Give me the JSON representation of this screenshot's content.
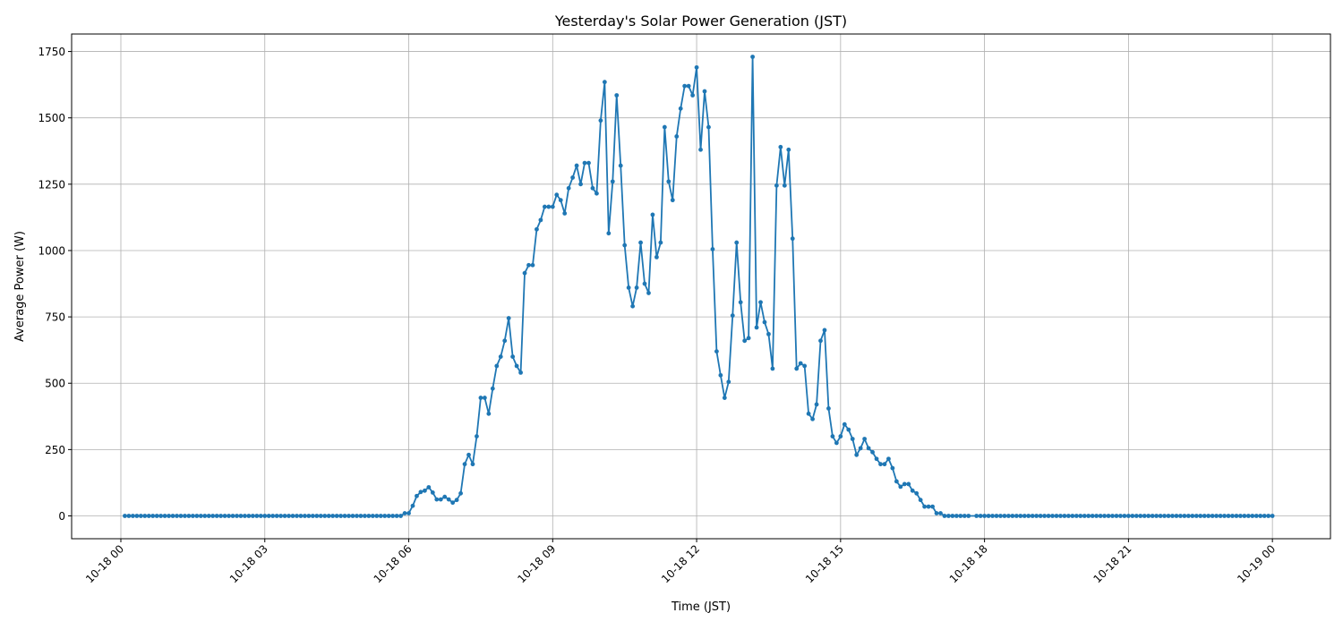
{
  "chart_data": {
    "type": "line",
    "title": "Yesterday's Solar Power Generation (JST)",
    "xlabel": "Time (JST)",
    "ylabel": "Average Power (W)",
    "ylim": [
      -86,
      1816
    ],
    "yticks": [
      0,
      250,
      500,
      750,
      1000,
      1250,
      1500,
      1750
    ],
    "xticks": [
      "10-18 00",
      "10-18 03",
      "10-18 06",
      "10-18 09",
      "10-18 12",
      "10-18 15",
      "10-18 18",
      "10-18 21",
      "10-19 00"
    ],
    "grid": true,
    "marker": "circle",
    "color": "#1f77b4",
    "series": [
      {
        "x": [
          "10-18 00:05",
          "10-18 00:10",
          "10-18 00:15",
          "10-18 00:20",
          "10-18 00:25",
          "10-18 00:30",
          "10-18 00:35",
          "10-18 00:40",
          "10-18 00:45",
          "10-18 00:50",
          "10-18 00:55",
          "10-18 01:00",
          "10-18 01:05",
          "10-18 01:10",
          "10-18 01:15",
          "10-18 01:20",
          "10-18 01:25",
          "10-18 01:30",
          "10-18 01:35",
          "10-18 01:40",
          "10-18 01:45",
          "10-18 01:50",
          "10-18 01:55",
          "10-18 02:00",
          "10-18 02:05",
          "10-18 02:10",
          "10-18 02:15",
          "10-18 02:20",
          "10-18 02:25",
          "10-18 02:30",
          "10-18 02:35",
          "10-18 02:40",
          "10-18 02:45",
          "10-18 02:50",
          "10-18 02:55",
          "10-18 03:00",
          "10-18 03:05",
          "10-18 03:10",
          "10-18 03:15",
          "10-18 03:20",
          "10-18 03:25",
          "10-18 03:30",
          "10-18 03:35",
          "10-18 03:40",
          "10-18 03:45",
          "10-18 03:50",
          "10-18 03:55",
          "10-18 04:00",
          "10-18 04:05",
          "10-18 04:10",
          "10-18 04:15",
          "10-18 04:20",
          "10-18 04:25",
          "10-18 04:30",
          "10-18 04:35",
          "10-18 04:40",
          "10-18 04:45",
          "10-18 04:50",
          "10-18 04:55",
          "10-18 05:00",
          "10-18 05:05",
          "10-18 05:10",
          "10-18 05:15",
          "10-18 05:20",
          "10-18 05:25",
          "10-18 05:30",
          "10-18 05:35",
          "10-18 05:40",
          "10-18 05:45",
          "10-18 05:50",
          "10-18 05:55",
          "10-18 06:00",
          "10-18 06:05",
          "10-18 06:10",
          "10-18 06:15",
          "10-18 06:20",
          "10-18 06:25",
          "10-18 06:30",
          "10-18 06:35",
          "10-18 06:40",
          "10-18 06:45",
          "10-18 06:50",
          "10-18 06:55",
          "10-18 07:00",
          "10-18 07:05",
          "10-18 07:10",
          "10-18 07:15",
          "10-18 07:20",
          "10-18 07:25",
          "10-18 07:30",
          "10-18 07:35",
          "10-18 07:40",
          "10-18 07:45",
          "10-18 07:50",
          "10-18 07:55",
          "10-18 08:00",
          "10-18 08:05",
          "10-18 08:10",
          "10-18 08:15",
          "10-18 08:20",
          "10-18 08:25",
          "10-18 08:30",
          "10-18 08:35",
          "10-18 08:40",
          "10-18 08:45",
          "10-18 08:50",
          "10-18 08:55",
          "10-18 09:00",
          "10-18 09:05",
          "10-18 09:10",
          "10-18 09:15",
          "10-18 09:20",
          "10-18 09:25",
          "10-18 09:30",
          "10-18 09:35",
          "10-18 09:40",
          "10-18 09:45",
          "10-18 09:50",
          "10-18 09:55",
          "10-18 10:00",
          "10-18 10:05",
          "10-18 10:10",
          "10-18 10:15",
          "10-18 10:20",
          "10-18 10:25",
          "10-18 10:30",
          "10-18 10:35",
          "10-18 10:40",
          "10-18 10:45",
          "10-18 10:50",
          "10-18 10:55",
          "10-18 11:00",
          "10-18 11:05",
          "10-18 11:10",
          "10-18 11:15",
          "10-18 11:20",
          "10-18 11:25",
          "10-18 11:30",
          "10-18 11:35",
          "10-18 11:40",
          "10-18 11:45",
          "10-18 11:50",
          "10-18 11:55",
          "10-18 12:00",
          "10-18 12:05",
          "10-18 12:10",
          "10-18 12:15",
          "10-18 12:20",
          "10-18 12:25",
          "10-18 12:30",
          "10-18 12:35",
          "10-18 12:40",
          "10-18 12:45",
          "10-18 12:50",
          "10-18 12:55",
          "10-18 13:00",
          "10-18 13:05",
          "10-18 13:10",
          "10-18 13:15",
          "10-18 13:20",
          "10-18 13:25",
          "10-18 13:30",
          "10-18 13:35",
          "10-18 13:40",
          "10-18 13:45",
          "10-18 13:50",
          "10-18 13:55",
          "10-18 14:00",
          "10-18 14:05",
          "10-18 14:10",
          "10-18 14:15",
          "10-18 14:20",
          "10-18 14:25",
          "10-18 14:30",
          "10-18 14:35",
          "10-18 14:40",
          "10-18 14:45",
          "10-18 14:50",
          "10-18 14:55",
          "10-18 15:00",
          "10-18 15:05",
          "10-18 15:10",
          "10-18 15:15",
          "10-18 15:20",
          "10-18 15:25",
          "10-18 15:30",
          "10-18 15:35",
          "10-18 15:40",
          "10-18 15:45",
          "10-18 15:50",
          "10-18 15:55",
          "10-18 16:00",
          "10-18 16:05",
          "10-18 16:10",
          "10-18 16:15",
          "10-18 16:20",
          "10-18 16:25",
          "10-18 16:30",
          "10-18 16:35",
          "10-18 16:40",
          "10-18 16:45",
          "10-18 16:50",
          "10-18 16:55",
          "10-18 17:00",
          "10-18 17:05",
          "10-18 17:10",
          "10-18 17:15",
          "10-18 17:20",
          "10-18 17:25",
          "10-18 17:30",
          "10-18 17:35",
          "10-18 17:40",
          "10-18 17:50",
          "10-18 17:55",
          "10-18 18:00",
          "10-18 18:05",
          "10-18 18:10",
          "10-18 18:15",
          "10-18 18:20",
          "10-18 18:25",
          "10-18 18:30",
          "10-18 18:35",
          "10-18 18:40",
          "10-18 18:45",
          "10-18 18:50",
          "10-18 18:55",
          "10-18 19:00",
          "10-18 19:05",
          "10-18 19:10",
          "10-18 19:15",
          "10-18 19:20",
          "10-18 19:25",
          "10-18 19:30",
          "10-18 19:35",
          "10-18 19:40",
          "10-18 19:45",
          "10-18 19:50",
          "10-18 19:55",
          "10-18 20:00",
          "10-18 20:05",
          "10-18 20:10",
          "10-18 20:15",
          "10-18 20:20",
          "10-18 20:25",
          "10-18 20:30",
          "10-18 20:35",
          "10-18 20:40",
          "10-18 20:45",
          "10-18 20:50",
          "10-18 20:55",
          "10-18 21:00",
          "10-18 21:05",
          "10-18 21:10",
          "10-18 21:15",
          "10-18 21:20",
          "10-18 21:25",
          "10-18 21:30",
          "10-18 21:35",
          "10-18 21:40",
          "10-18 21:45",
          "10-18 21:50",
          "10-18 21:55",
          "10-18 22:00",
          "10-18 22:05",
          "10-18 22:10",
          "10-18 22:15",
          "10-18 22:20",
          "10-18 22:25",
          "10-18 22:30",
          "10-18 22:35",
          "10-18 22:40",
          "10-18 22:45",
          "10-18 22:50",
          "10-18 22:55",
          "10-18 23:00",
          "10-18 23:05",
          "10-18 23:10",
          "10-18 23:15",
          "10-18 23:20",
          "10-18 23:25",
          "10-18 23:30",
          "10-18 23:35",
          "10-18 23:40",
          "10-18 23:45",
          "10-18 23:50",
          "10-18 23:55",
          "10-19 00:00"
        ],
        "y": [
          0,
          0,
          0,
          0,
          0,
          0,
          0,
          0,
          0,
          0,
          0,
          0,
          0,
          0,
          0,
          0,
          0,
          0,
          0,
          0,
          0,
          0,
          0,
          0,
          0,
          0,
          0,
          0,
          0,
          0,
          0,
          0,
          0,
          0,
          0,
          0,
          0,
          0,
          0,
          0,
          0,
          0,
          0,
          0,
          0,
          0,
          0,
          0,
          0,
          0,
          0,
          0,
          0,
          0,
          0,
          0,
          0,
          0,
          0,
          0,
          0,
          0,
          0,
          0,
          0,
          0,
          0,
          0,
          0,
          0,
          10,
          10,
          38,
          75,
          90,
          95,
          108,
          88,
          62,
          62,
          72,
          62,
          50,
          60,
          85,
          195,
          230,
          195,
          300,
          445,
          445,
          385,
          480,
          565,
          600,
          660,
          745,
          600,
          565,
          540,
          915,
          945,
          945,
          1080,
          1115,
          1165,
          1165,
          1165,
          1210,
          1190,
          1140,
          1235,
          1275,
          1320,
          1250,
          1330,
          1330,
          1235,
          1215,
          1490,
          1635,
          1065,
          1260,
          1585,
          1320,
          1020,
          860,
          790,
          860,
          1030,
          875,
          840,
          1135,
          975,
          1030,
          1465,
          1260,
          1190,
          1430,
          1535,
          1620,
          1620,
          1585,
          1690,
          1380,
          1600,
          1465,
          1005,
          620,
          530,
          445,
          505,
          755,
          1030,
          805,
          660,
          670,
          1730,
          710,
          805,
          730,
          685,
          555,
          1245,
          1390,
          1245,
          1380,
          1045,
          555,
          575,
          565,
          385,
          365,
          420,
          660,
          700,
          405,
          300,
          275,
          300,
          345,
          325,
          290,
          230,
          255,
          290,
          255,
          240,
          215,
          195,
          195,
          215,
          180,
          130,
          110,
          120,
          120,
          95,
          85,
          60,
          35,
          35,
          35,
          10,
          10,
          0,
          0,
          0,
          0,
          0,
          0,
          0,
          0,
          0,
          0,
          0,
          0,
          0,
          0,
          0,
          0,
          0,
          0,
          0,
          0,
          0,
          0,
          0,
          0,
          0,
          0,
          0,
          0,
          0,
          0,
          0,
          0,
          0,
          0,
          0,
          0,
          0,
          0,
          0,
          0,
          0,
          0,
          0,
          0,
          0,
          0,
          0,
          0,
          0,
          0,
          0,
          0,
          0,
          0,
          0,
          0,
          0,
          0,
          0,
          0,
          0,
          0,
          0,
          0,
          0,
          0,
          0,
          0,
          0,
          0,
          0,
          0,
          0,
          0,
          0,
          0,
          0,
          0,
          0,
          0,
          0,
          0
        ]
      }
    ]
  }
}
